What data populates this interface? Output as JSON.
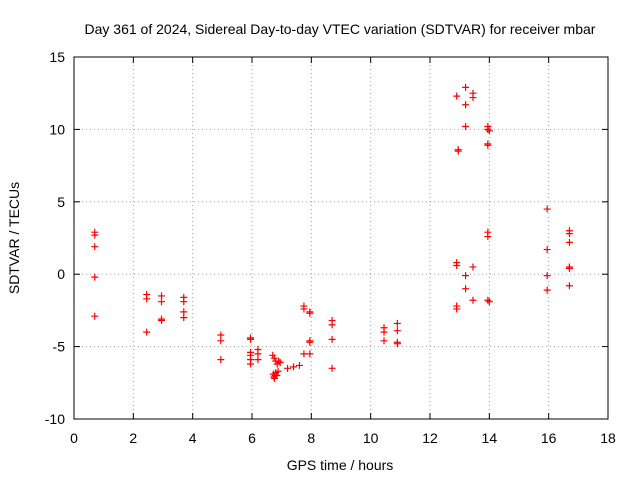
{
  "chart_data": {
    "type": "scatter",
    "title": "Day 361 of 2024, Sidereal Day-to-day VTEC variation (SDTVAR) for receiver mbar",
    "xlabel": "GPS time / hours",
    "ylabel": "SDTVAR / TECUs",
    "xlim": [
      0,
      18
    ],
    "ylim": [
      -10,
      15
    ],
    "xticks": [
      "0",
      "2",
      "4",
      "6",
      "8",
      "10",
      "12",
      "14",
      "16",
      "18"
    ],
    "yticks": [
      "-10",
      "-5",
      "0",
      "5",
      "10",
      "15"
    ],
    "grid": true,
    "marker": "+",
    "color": "#ff0000",
    "series": [
      {
        "name": "SDTVAR",
        "points": [
          [
            0.7,
            2.9
          ],
          [
            0.7,
            2.7
          ],
          [
            0.7,
            1.9
          ],
          [
            0.7,
            -0.2
          ],
          [
            0.7,
            -2.9
          ],
          [
            2.45,
            -1.4
          ],
          [
            2.45,
            -1.7
          ],
          [
            2.45,
            -4.0
          ],
          [
            2.95,
            -1.5
          ],
          [
            2.95,
            -1.9
          ],
          [
            2.95,
            -3.1
          ],
          [
            2.95,
            -3.2
          ],
          [
            3.7,
            -1.6
          ],
          [
            3.7,
            -1.9
          ],
          [
            3.7,
            -2.6
          ],
          [
            3.7,
            -3.0
          ],
          [
            4.95,
            -4.2
          ],
          [
            4.95,
            -4.6
          ],
          [
            4.95,
            -5.9
          ],
          [
            5.95,
            -4.4
          ],
          [
            5.95,
            -4.5
          ],
          [
            5.95,
            -5.4
          ],
          [
            5.95,
            -5.6
          ],
          [
            5.95,
            -5.9
          ],
          [
            5.95,
            -6.2
          ],
          [
            6.2,
            -5.2
          ],
          [
            6.2,
            -5.5
          ],
          [
            6.2,
            -5.9
          ],
          [
            6.7,
            -5.6
          ],
          [
            6.75,
            -5.8
          ],
          [
            6.8,
            -6.0
          ],
          [
            6.85,
            -6.2
          ],
          [
            6.9,
            -6.0
          ],
          [
            6.95,
            -6.1
          ],
          [
            6.72,
            -6.9
          ],
          [
            6.74,
            -7.1
          ],
          [
            6.76,
            -7.2
          ],
          [
            6.78,
            -7.0
          ],
          [
            6.8,
            -6.8
          ],
          [
            6.84,
            -7.0
          ],
          [
            6.88,
            -6.7
          ],
          [
            7.2,
            -6.5
          ],
          [
            7.4,
            -6.4
          ],
          [
            7.6,
            -6.3
          ],
          [
            7.75,
            -2.2
          ],
          [
            7.75,
            -2.4
          ],
          [
            7.75,
            -5.5
          ],
          [
            7.95,
            -2.6
          ],
          [
            7.95,
            -2.7
          ],
          [
            7.95,
            -4.6
          ],
          [
            7.95,
            -4.7
          ],
          [
            7.95,
            -5.5
          ],
          [
            8.7,
            -3.2
          ],
          [
            8.7,
            -3.5
          ],
          [
            8.7,
            -4.5
          ],
          [
            8.7,
            -6.5
          ],
          [
            10.45,
            -3.7
          ],
          [
            10.45,
            -4.0
          ],
          [
            10.45,
            -4.6
          ],
          [
            10.9,
            -3.4
          ],
          [
            10.9,
            -3.9
          ],
          [
            10.9,
            -4.7
          ],
          [
            10.9,
            -4.8
          ],
          [
            12.9,
            12.3
          ],
          [
            12.95,
            8.6
          ],
          [
            12.95,
            8.5
          ],
          [
            13.2,
            12.9
          ],
          [
            13.2,
            11.7
          ],
          [
            13.2,
            10.2
          ],
          [
            13.45,
            12.5
          ],
          [
            13.45,
            12.2
          ],
          [
            13.95,
            10.2
          ],
          [
            13.95,
            10.0
          ],
          [
            14.0,
            9.9
          ],
          [
            13.95,
            9.0
          ],
          [
            13.95,
            8.9
          ],
          [
            12.9,
            0.8
          ],
          [
            12.9,
            0.6
          ],
          [
            12.9,
            -2.2
          ],
          [
            12.9,
            -2.4
          ],
          [
            13.2,
            -0.1
          ],
          [
            13.2,
            -1.0
          ],
          [
            13.45,
            0.5
          ],
          [
            13.45,
            -1.8
          ],
          [
            13.95,
            2.9
          ],
          [
            13.95,
            2.6
          ],
          [
            13.95,
            -1.8
          ],
          [
            14.0,
            -1.9
          ],
          [
            15.95,
            4.5
          ],
          [
            15.95,
            1.7
          ],
          [
            15.95,
            -0.1
          ],
          [
            15.95,
            -1.1
          ],
          [
            16.7,
            3.0
          ],
          [
            16.7,
            2.8
          ],
          [
            16.7,
            2.2
          ],
          [
            16.7,
            0.5
          ],
          [
            16.7,
            0.4
          ],
          [
            16.7,
            -0.8
          ]
        ]
      }
    ]
  }
}
